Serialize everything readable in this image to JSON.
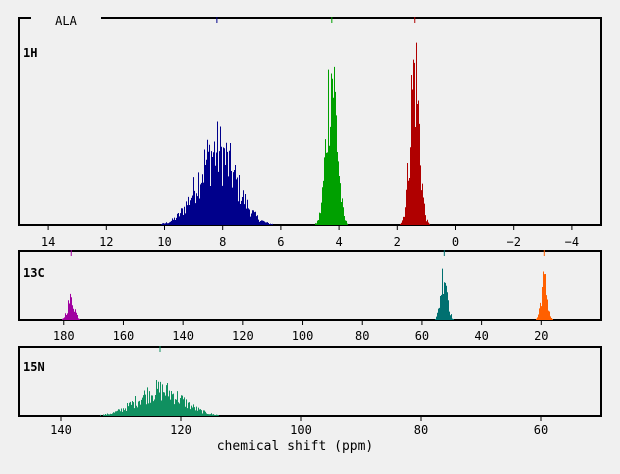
{
  "title": "ALA",
  "xlabel": "chemical shift (ppm)",
  "chart_data": [
    {
      "type": "bar",
      "name": "1H",
      "xlim": [
        15.0,
        -5.0
      ],
      "ticks": [
        14,
        12,
        10,
        8,
        6,
        4,
        2,
        0,
        -2,
        -4
      ],
      "tick_labels": [
        "14",
        "12",
        "10",
        "8",
        "6",
        "4",
        "2",
        "0",
        "−2",
        "−4"
      ],
      "markers": [
        {
          "x": 8.2,
          "color": "#00008b"
        },
        {
          "x": 4.25,
          "color": "#00a000"
        },
        {
          "x": 1.4,
          "color": "#b00000"
        }
      ],
      "peaks": [
        {
          "center": 8.2,
          "sigma": 0.65,
          "height": 0.48,
          "from": 11.0,
          "to": 6.0,
          "color": "#00008b"
        },
        {
          "center": 4.25,
          "sigma": 0.18,
          "height": 1.0,
          "from": 6.0,
          "to": 2.8,
          "color": "#00a000"
        },
        {
          "center": 1.4,
          "sigma": 0.16,
          "height": 1.0,
          "from": 2.8,
          "to": -0.8,
          "color": "#b00000"
        }
      ]
    },
    {
      "type": "bar",
      "name": "13C",
      "xlim": [
        195,
        0
      ],
      "ticks": [
        180,
        160,
        140,
        120,
        100,
        80,
        60,
        40,
        20
      ],
      "tick_labels": [
        "180",
        "160",
        "140",
        "120",
        "100",
        "80",
        "60",
        "40",
        "20"
      ],
      "markers": [
        {
          "x": 177.5,
          "color": "#a000a0"
        },
        {
          "x": 52.5,
          "color": "#007070"
        },
        {
          "x": 19.0,
          "color": "#ff6000"
        }
      ],
      "peaks": [
        {
          "center": 177.5,
          "sigma": 1.2,
          "height": 0.42,
          "from": 182,
          "to": 172,
          "color": "#a000a0"
        },
        {
          "center": 52.5,
          "sigma": 1.1,
          "height": 1.0,
          "from": 58,
          "to": 47,
          "color": "#007070"
        },
        {
          "center": 19.0,
          "sigma": 1.0,
          "height": 0.78,
          "from": 24,
          "to": 14,
          "color": "#ff6000"
        }
      ]
    },
    {
      "type": "bar",
      "name": "15N",
      "xlim": [
        147,
        50
      ],
      "ticks": [
        140,
        120,
        100,
        80,
        60
      ],
      "tick_labels": [
        "140",
        "120",
        "100",
        "80",
        "60"
      ],
      "markers": [
        {
          "x": 123.5,
          "color": "#109060"
        }
      ],
      "peaks": [
        {
          "center": 123.5,
          "sigma": 3.8,
          "height": 0.55,
          "from": 136,
          "to": 109,
          "color": "#109060"
        }
      ]
    }
  ]
}
